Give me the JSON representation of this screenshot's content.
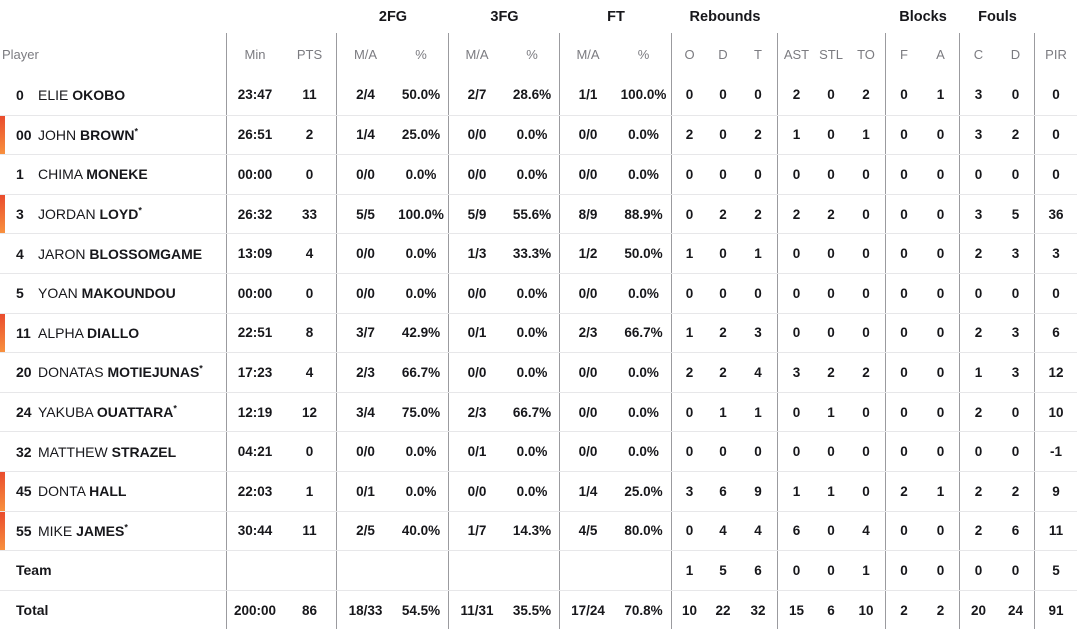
{
  "groups": {
    "fg2": "2FG",
    "fg3": "3FG",
    "ft": "FT",
    "rebounds": "Rebounds",
    "blocks": "Blocks",
    "fouls": "Fouls"
  },
  "columns": {
    "player": "Player",
    "min": "Min",
    "pts": "PTS",
    "ma": "M/A",
    "pct": "%",
    "o": "O",
    "d": "D",
    "t": "T",
    "ast": "AST",
    "stl": "STL",
    "to": "TO",
    "f": "F",
    "a": "A",
    "c": "C",
    "pir": "PIR"
  },
  "players": [
    {
      "number": "0",
      "first": "ELIE",
      "last": "OKOBO",
      "star": "",
      "on_court": false,
      "stats": [
        "23:47",
        "11",
        "2/4",
        "50.0%",
        "2/7",
        "28.6%",
        "1/1",
        "100.0%",
        "0",
        "0",
        "0",
        "2",
        "0",
        "2",
        "0",
        "1",
        "3",
        "0",
        "0"
      ]
    },
    {
      "number": "00",
      "first": "JOHN",
      "last": "BROWN",
      "star": "*",
      "on_court": true,
      "stats": [
        "26:51",
        "2",
        "1/4",
        "25.0%",
        "0/0",
        "0.0%",
        "0/0",
        "0.0%",
        "2",
        "0",
        "2",
        "1",
        "0",
        "1",
        "0",
        "0",
        "3",
        "2",
        "0"
      ]
    },
    {
      "number": "1",
      "first": "CHIMA",
      "last": "MONEKE",
      "star": "",
      "on_court": false,
      "stats": [
        "00:00",
        "0",
        "0/0",
        "0.0%",
        "0/0",
        "0.0%",
        "0/0",
        "0.0%",
        "0",
        "0",
        "0",
        "0",
        "0",
        "0",
        "0",
        "0",
        "0",
        "0",
        "0"
      ]
    },
    {
      "number": "3",
      "first": "JORDAN",
      "last": "LOYD",
      "star": "*",
      "on_court": true,
      "stats": [
        "26:32",
        "33",
        "5/5",
        "100.0%",
        "5/9",
        "55.6%",
        "8/9",
        "88.9%",
        "0",
        "2",
        "2",
        "2",
        "2",
        "0",
        "0",
        "0",
        "3",
        "5",
        "36"
      ]
    },
    {
      "number": "4",
      "first": "JARON",
      "last": "BLOSSOMGAME",
      "star": "",
      "on_court": false,
      "stats": [
        "13:09",
        "4",
        "0/0",
        "0.0%",
        "1/3",
        "33.3%",
        "1/2",
        "50.0%",
        "1",
        "0",
        "1",
        "0",
        "0",
        "0",
        "0",
        "0",
        "2",
        "3",
        "3"
      ]
    },
    {
      "number": "5",
      "first": "YOAN",
      "last": "MAKOUNDOU",
      "star": "",
      "on_court": false,
      "stats": [
        "00:00",
        "0",
        "0/0",
        "0.0%",
        "0/0",
        "0.0%",
        "0/0",
        "0.0%",
        "0",
        "0",
        "0",
        "0",
        "0",
        "0",
        "0",
        "0",
        "0",
        "0",
        "0"
      ]
    },
    {
      "number": "11",
      "first": "ALPHA",
      "last": "DIALLO",
      "star": "",
      "on_court": true,
      "stats": [
        "22:51",
        "8",
        "3/7",
        "42.9%",
        "0/1",
        "0.0%",
        "2/3",
        "66.7%",
        "1",
        "2",
        "3",
        "0",
        "0",
        "0",
        "0",
        "0",
        "2",
        "3",
        "6"
      ]
    },
    {
      "number": "20",
      "first": "DONATAS",
      "last": "MOTIEJUNAS",
      "star": "*",
      "on_court": false,
      "stats": [
        "17:23",
        "4",
        "2/3",
        "66.7%",
        "0/0",
        "0.0%",
        "0/0",
        "0.0%",
        "2",
        "2",
        "4",
        "3",
        "2",
        "2",
        "0",
        "0",
        "1",
        "3",
        "12"
      ]
    },
    {
      "number": "24",
      "first": "YAKUBA",
      "last": "OUATTARA",
      "star": "*",
      "on_court": false,
      "stats": [
        "12:19",
        "12",
        "3/4",
        "75.0%",
        "2/3",
        "66.7%",
        "0/0",
        "0.0%",
        "0",
        "1",
        "1",
        "0",
        "1",
        "0",
        "0",
        "0",
        "2",
        "0",
        "10"
      ]
    },
    {
      "number": "32",
      "first": "MATTHEW",
      "last": "STRAZEL",
      "star": "",
      "on_court": false,
      "stats": [
        "04:21",
        "0",
        "0/0",
        "0.0%",
        "0/1",
        "0.0%",
        "0/0",
        "0.0%",
        "0",
        "0",
        "0",
        "0",
        "0",
        "0",
        "0",
        "0",
        "0",
        "0",
        "-1"
      ]
    },
    {
      "number": "45",
      "first": "DONTA",
      "last": "HALL",
      "star": "",
      "on_court": true,
      "stats": [
        "22:03",
        "1",
        "0/1",
        "0.0%",
        "0/0",
        "0.0%",
        "1/4",
        "25.0%",
        "3",
        "6",
        "9",
        "1",
        "1",
        "0",
        "2",
        "1",
        "2",
        "2",
        "9"
      ]
    },
    {
      "number": "55",
      "first": "MIKE",
      "last": "JAMES",
      "star": "*",
      "on_court": true,
      "stats": [
        "30:44",
        "11",
        "2/5",
        "40.0%",
        "1/7",
        "14.3%",
        "4/5",
        "80.0%",
        "0",
        "4",
        "4",
        "6",
        "0",
        "4",
        "0",
        "0",
        "2",
        "6",
        "11"
      ]
    }
  ],
  "team": {
    "label": "Team",
    "stats": [
      "",
      "",
      "",
      "",
      "",
      "",
      "",
      "",
      "1",
      "5",
      "6",
      "0",
      "0",
      "1",
      "0",
      "0",
      "0",
      "0",
      "5"
    ]
  },
  "total": {
    "label": "Total",
    "stats": [
      "200:00",
      "86",
      "18/33",
      "54.5%",
      "11/31",
      "35.5%",
      "17/24",
      "70.8%",
      "10",
      "22",
      "32",
      "15",
      "6",
      "10",
      "2",
      "2",
      "20",
      "24",
      "91"
    ]
  },
  "colors": {
    "accent_top": "#e94b2d",
    "accent_bottom": "#f8913e",
    "header_text": "#7b7b80",
    "text": "#17171b",
    "divider": "#9b9b9f",
    "row_line": "#e7e7e9"
  }
}
